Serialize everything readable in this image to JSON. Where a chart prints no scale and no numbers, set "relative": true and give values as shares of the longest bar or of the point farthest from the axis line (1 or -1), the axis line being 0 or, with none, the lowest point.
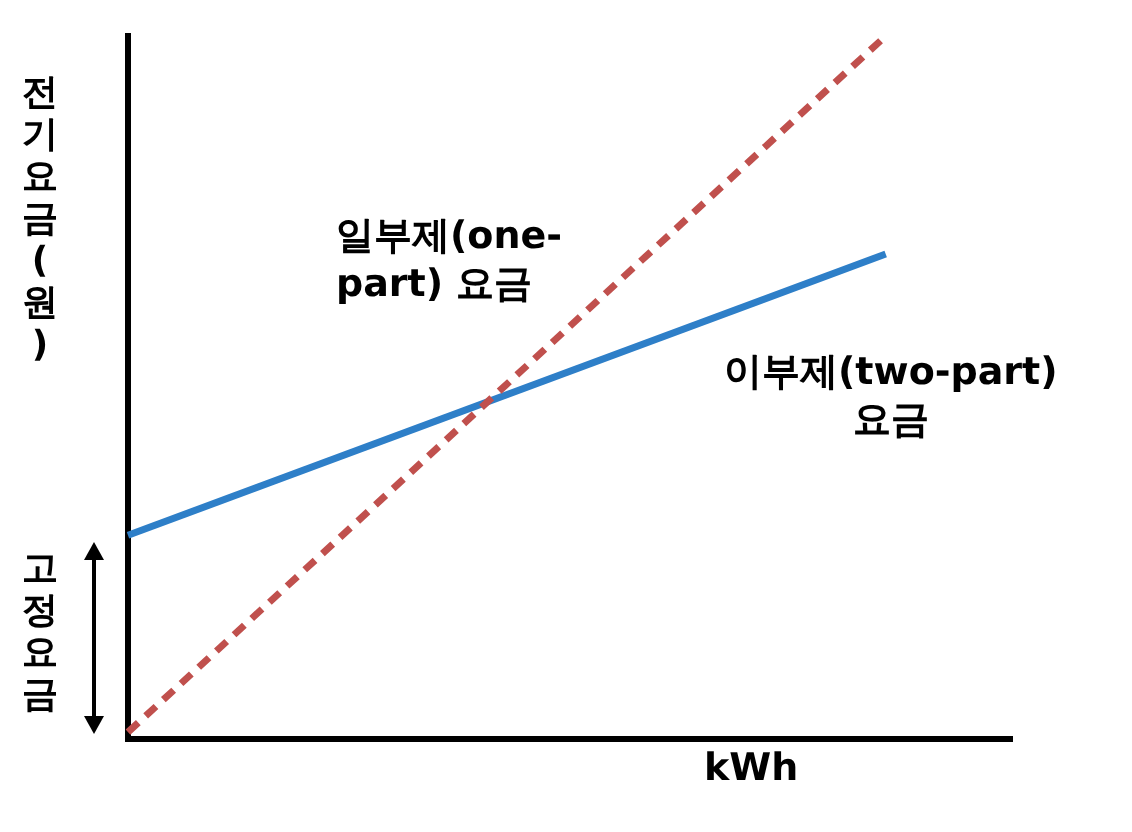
{
  "chart_data": {
    "type": "line",
    "relative": true,
    "xlabel": "kWh",
    "ylabel": "전기요금(원)",
    "legend": false,
    "grid": false,
    "marker": "none",
    "categories": [
      null,
      null,
      null,
      null,
      null,
      null,
      null,
      null
    ],
    "series": [
      {
        "color": "#c0504d",
        "line_style": "dashed",
        "values": [
          0.01,
          null,
          null,
          null,
          null,
          null,
          1,
          null
        ]
      },
      {
        "color": "#2e7fc8",
        "line_style": "solid",
        "values": [
          0.29,
          null,
          null,
          null,
          null,
          null,
          0.69,
          null
        ]
      }
    ],
    "annotations": [
      "일부제(one-\npart) 요금",
      "이부제(two-part)\n요금",
      "고정요금"
    ]
  }
}
